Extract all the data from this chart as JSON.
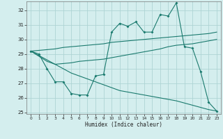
{
  "xlabel": "Humidex (Indice chaleur)",
  "x_values": [
    0,
    1,
    2,
    3,
    4,
    5,
    6,
    7,
    8,
    9,
    10,
    11,
    12,
    13,
    14,
    15,
    16,
    17,
    18,
    19,
    20,
    21,
    22,
    23
  ],
  "main_series": [
    29.2,
    29.0,
    28.0,
    27.1,
    27.1,
    26.3,
    26.2,
    26.2,
    27.5,
    27.6,
    30.5,
    31.1,
    30.9,
    31.2,
    30.5,
    30.5,
    31.7,
    31.6,
    32.5,
    29.5,
    29.4,
    27.8,
    25.7,
    25.1
  ],
  "trend_up": [
    29.2,
    29.25,
    29.3,
    29.35,
    29.45,
    29.5,
    29.55,
    29.6,
    29.65,
    29.7,
    29.8,
    29.85,
    29.9,
    29.95,
    30.0,
    30.05,
    30.1,
    30.15,
    30.2,
    30.25,
    30.3,
    30.35,
    30.4,
    30.5
  ],
  "trend_down": [
    29.2,
    28.9,
    28.6,
    28.3,
    28.0,
    27.7,
    27.5,
    27.3,
    27.1,
    26.9,
    26.7,
    26.5,
    26.4,
    26.3,
    26.2,
    26.1,
    26.0,
    25.9,
    25.8,
    25.65,
    25.5,
    25.35,
    25.2,
    25.1
  ],
  "trend_cross": [
    29.2,
    28.85,
    28.5,
    28.3,
    28.35,
    28.4,
    28.5,
    28.55,
    28.6,
    28.65,
    28.75,
    28.85,
    28.95,
    29.05,
    29.15,
    29.25,
    29.35,
    29.5,
    29.6,
    29.65,
    29.7,
    29.8,
    29.9,
    30.0
  ],
  "color": "#1a7a6e",
  "bg_color": "#d4eeee",
  "grid_color": "#aed4d4",
  "ylim_min": 24.9,
  "ylim_max": 32.6,
  "yticks": [
    25,
    26,
    27,
    28,
    29,
    30,
    31,
    32
  ],
  "xlim_min": -0.5,
  "xlim_max": 23.5
}
